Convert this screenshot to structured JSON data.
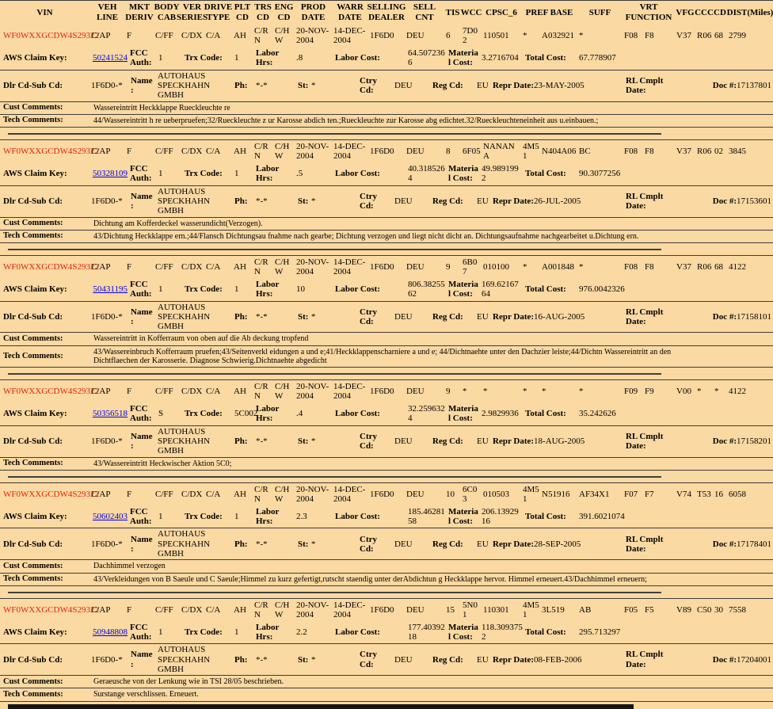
{
  "colors": {
    "page_bg": "#fbd9a2",
    "vin_text": "#e8220a",
    "link": "#0000e6",
    "rule": "#3c3c3c"
  },
  "header": {
    "cols": [
      "VIN",
      "VEH LINE",
      "MKT DERIV",
      "BODY CAB",
      "VER SERIES",
      "DRIVE TYPE",
      "PLT CD",
      "TRS CD",
      "ENG CD",
      "PROD DATE",
      "WARR DATE",
      "SELLING DEALER",
      "SELL CNT",
      "TIS",
      "WCC",
      "CPSC_6",
      "PREF BASE",
      "SUFF",
      "VRT FUNCTION",
      "VFG",
      "CCC",
      "CD",
      "DIST(Miles)"
    ]
  },
  "labels": {
    "aws_claim_key": "AWS Claim Key:",
    "fcc_auth": "FCC Auth:",
    "trx_code": "Trx Code:",
    "labor_hrs": "Labor Hrs:",
    "labor_cost": "Labor Cost:",
    "material_cost": "Material Cost:",
    "total_cost": "Total Cost:",
    "dlr_cd": "Dlr Cd-Sub Cd:",
    "name": "Name:",
    "ph": "Ph:",
    "st": "St:",
    "ctry_cd": "Ctry Cd:",
    "reg_cd": "Reg Cd:",
    "repr_date": "Repr Date:",
    "rl_cmplt": "RL Cmplt Date:",
    "doc": "Doc #:",
    "cust": "Cust Comments:",
    "tech": "Tech Comments:"
  },
  "records": [
    {
      "vin": "WF0WXXGCDW4S29322",
      "veh_line": "C/AP",
      "mkt_deriv": "F",
      "body_cab": "C/FF",
      "ver_series": "C/DX",
      "drive_type": "C/A",
      "plt_cd": "AH",
      "trs_cd": "C/RN",
      "eng_cd": "C/HW",
      "prod_date": "20-NOV-2004",
      "warr_date": "14-DEC-2004",
      "selling_dealer": "1F6D0",
      "sell_cnt": "DEU",
      "tis": "6",
      "wcc": "7D02",
      "cpsc6": "110501",
      "pref": "*",
      "base": "A032921",
      "suff": "*",
      "vrt": "F08",
      "func": "F8",
      "vfg": "V37",
      "ccc": "R06",
      "cd": "68",
      "dist": "2799",
      "aws_claim_key": "50241524",
      "fcc_auth": "1",
      "trx_code": "1",
      "labor_hrs": ".8",
      "labor_cost": "64.5072366",
      "material_cost": "3.2716704",
      "total_cost": "67.778907",
      "dlr_cd_sub_cd": "1F6D0-*",
      "name": "AUTOHAUS SPECKHAHN GMBH",
      "ph": "*-*",
      "st": "*",
      "ctry_cd": "DEU",
      "reg_cd": "EU",
      "repr_date": "23-MAY-2005",
      "rl_cmplt_date": "",
      "doc_num": "17137801",
      "cust_comments": "Wassereintritt Heckklappe Rueckleuchte re",
      "tech_comments": "44/Wassereintritt h re ueberpruefen;32/Rueckleuchte z ur Karosse abdich ten.;Rueckleuchte zur Karosse abg edichtet.32/Rueckleuchteneinheit aus u.einbauen.;"
    },
    {
      "vin": "WF0WXXGCDW4S29322",
      "veh_line": "C/AP",
      "mkt_deriv": "F",
      "body_cab": "C/FF",
      "ver_series": "C/DX",
      "drive_type": "C/A",
      "plt_cd": "AH",
      "trs_cd": "C/RN",
      "eng_cd": "C/HW",
      "prod_date": "20-NOV-2004",
      "warr_date": "14-DEC-2004",
      "selling_dealer": "1F6D0",
      "sell_cnt": "DEU",
      "tis": "8",
      "wcc": "6F05",
      "cpsc6": "NANANA",
      "pref": "4M51",
      "base": "N404A06",
      "suff": "BC",
      "vrt": "F08",
      "func": "F8",
      "vfg": "V37",
      "ccc": "R06",
      "cd": "02",
      "dist": "3845",
      "aws_claim_key": "50328109",
      "fcc_auth": "1",
      "trx_code": "1",
      "labor_hrs": ".5",
      "labor_cost": "40.3185264",
      "material_cost": "49.9891992",
      "total_cost": "90.3077256",
      "dlr_cd_sub_cd": "1F6D0-*",
      "name": "AUTOHAUS SPECKHAHN GMBH",
      "ph": "*-*",
      "st": "*",
      "ctry_cd": "DEU",
      "reg_cd": "EU",
      "repr_date": "26-JUL-2005",
      "rl_cmplt_date": "",
      "doc_num": "17153601",
      "cust_comments": "Dichtung am Kofferdeckel wasserundicht(Verzogen).",
      "tech_comments": "43/Dichtung Heckklappe ern.;44/Flansch Dichtungsau fnahme nach gearbe; Dichtung verzogen und liegt nicht dicht an. Dichtungsaufnahme nachgearbeitet u.Dichtung ern."
    },
    {
      "vin": "WF0WXXGCDW4S29322",
      "veh_line": "C/AP",
      "mkt_deriv": "F",
      "body_cab": "C/FF",
      "ver_series": "C/DX",
      "drive_type": "C/A",
      "plt_cd": "AH",
      "trs_cd": "C/RN",
      "eng_cd": "C/HW",
      "prod_date": "20-NOV-2004",
      "warr_date": "14-DEC-2004",
      "selling_dealer": "1F6D0",
      "sell_cnt": "DEU",
      "tis": "9",
      "wcc": "6B07",
      "cpsc6": "010100",
      "pref": "*",
      "base": "A001848",
      "suff": "*",
      "vrt": "F08",
      "func": "F8",
      "vfg": "V37",
      "ccc": "R06",
      "cd": "68",
      "dist": "4122",
      "aws_claim_key": "50431195",
      "fcc_auth": "1",
      "trx_code": "1",
      "labor_hrs": "10",
      "labor_cost": "806.3825562",
      "material_cost": "169.6216764",
      "total_cost": "976.0042326",
      "dlr_cd_sub_cd": "1F6D0-*",
      "name": "AUTOHAUS SPECKHAHN GMBH",
      "ph": "*-*",
      "st": "*",
      "ctry_cd": "DEU",
      "reg_cd": "EU",
      "repr_date": "16-AUG-2005",
      "rl_cmplt_date": "",
      "doc_num": "17158101",
      "cust_comments": "Wassereintritt in Kofferraum von oben auf die Ab deckung tropfend",
      "tech_comments": "43/Wassereinbruch Kofferraum pruefen;43/Seitenverkl eidungen a und e;41/Heckklappenscharniere a und e; 44/Dichtnaehte unter den Dachzier leiste;44/Dichtn Wassereintritt an den Dichtflaechen der Karosserie. Diagnose Schwierig.Dichtnaehte abgedicht"
    },
    {
      "vin": "WF0WXXGCDW4S29322",
      "veh_line": "C/AP",
      "mkt_deriv": "F",
      "body_cab": "C/FF",
      "ver_series": "C/DX",
      "drive_type": "C/A",
      "plt_cd": "AH",
      "trs_cd": "C/RN",
      "eng_cd": "C/HW",
      "prod_date": "20-NOV-2004",
      "warr_date": "14-DEC-2004",
      "selling_dealer": "1F6D0",
      "sell_cnt": "DEU",
      "tis": "9",
      "wcc": "*",
      "cpsc6": "*",
      "pref": "*",
      "base": "*",
      "suff": "*",
      "vrt": "F09",
      "func": "F9",
      "vfg": "V00",
      "ccc": "*",
      "cd": "*",
      "dist": "4122",
      "aws_claim_key": "50356518",
      "fcc_auth": "S",
      "trx_code": "5C002",
      "labor_hrs": ".4",
      "labor_cost": "32.2596324",
      "material_cost": "2.9829936",
      "total_cost": "35.242626",
      "dlr_cd_sub_cd": "1F6D0-*",
      "name": "AUTOHAUS SPECKHAHN GMBH",
      "ph": "*-*",
      "st": "*",
      "ctry_cd": "DEU",
      "reg_cd": "EU",
      "repr_date": "18-AUG-2005",
      "rl_cmplt_date": "",
      "doc_num": "17158201",
      "cust_comments": null,
      "tech_comments": "43/Wassereintritt Heckwischer Aktion 5C0;"
    },
    {
      "vin": "WF0WXXGCDW4S29322",
      "veh_line": "C/AP",
      "mkt_deriv": "F",
      "body_cab": "C/FF",
      "ver_series": "C/DX",
      "drive_type": "C/A",
      "plt_cd": "AH",
      "trs_cd": "C/RN",
      "eng_cd": "C/HW",
      "prod_date": "20-NOV-2004",
      "warr_date": "14-DEC-2004",
      "selling_dealer": "1F6D0",
      "sell_cnt": "DEU",
      "tis": "10",
      "wcc": "6C03",
      "cpsc6": "010503",
      "pref": "4M51",
      "base": "N51916",
      "suff": "AF34X1",
      "vrt": "F07",
      "func": "F7",
      "vfg": "V74",
      "ccc": "T53",
      "cd": "16",
      "dist": "6058",
      "aws_claim_key": "50602403",
      "fcc_auth": "1",
      "trx_code": "1",
      "labor_hrs": "2.3",
      "labor_cost": "185.4628158",
      "material_cost": "206.1392916",
      "total_cost": "391.6021074",
      "dlr_cd_sub_cd": "1F6D0-*",
      "name": "AUTOHAUS SPECKHAHN GMBH",
      "ph": "*-*",
      "st": "*",
      "ctry_cd": "DEU",
      "reg_cd": "EU",
      "repr_date": "28-SEP-2005",
      "rl_cmplt_date": "",
      "doc_num": "17178401",
      "cust_comments": "Dachhimmel verzogen",
      "tech_comments": "43/Verkleidungen von B Saeule und C Saeule;Himmel zu kurz gefertigt,rutscht staendig unter derAbdichtun g Heckklappe hervor. Himmel erneuert.43/Dachhimmel erneuern;"
    },
    {
      "vin": "WF0WXXGCDW4S29322",
      "veh_line": "C/AP",
      "mkt_deriv": "F",
      "body_cab": "C/FF",
      "ver_series": "C/DX",
      "drive_type": "C/A",
      "plt_cd": "AH",
      "trs_cd": "C/RN",
      "eng_cd": "C/HW",
      "prod_date": "20-NOV-2004",
      "warr_date": "14-DEC-2004",
      "selling_dealer": "1F6D0",
      "sell_cnt": "DEU",
      "tis": "15",
      "wcc": "5N01",
      "cpsc6": "110301",
      "pref": "4M51",
      "base": "3L519",
      "suff": "AB",
      "vrt": "F05",
      "func": "F5",
      "vfg": "V89",
      "ccc": "C50",
      "cd": "30",
      "dist": "7558",
      "aws_claim_key": "50948808",
      "fcc_auth": "1",
      "trx_code": "1",
      "labor_hrs": "2.2",
      "labor_cost": "177.4039218",
      "material_cost": "118.3093752",
      "total_cost": "295.713297",
      "dlr_cd_sub_cd": "1F6D0-*",
      "name": "AUTOHAUS SPECKHAHN GMBH",
      "ph": "*-*",
      "st": "*",
      "ctry_cd": "DEU",
      "reg_cd": "EU",
      "repr_date": "08-FEB-2006",
      "rl_cmplt_date": "",
      "doc_num": "17204001",
      "cust_comments": "Geraeusche von der Lenkung wie in TSI 28/05 beschrieben.",
      "tech_comments": "Surstange verschlissen. Erneuert."
    }
  ]
}
